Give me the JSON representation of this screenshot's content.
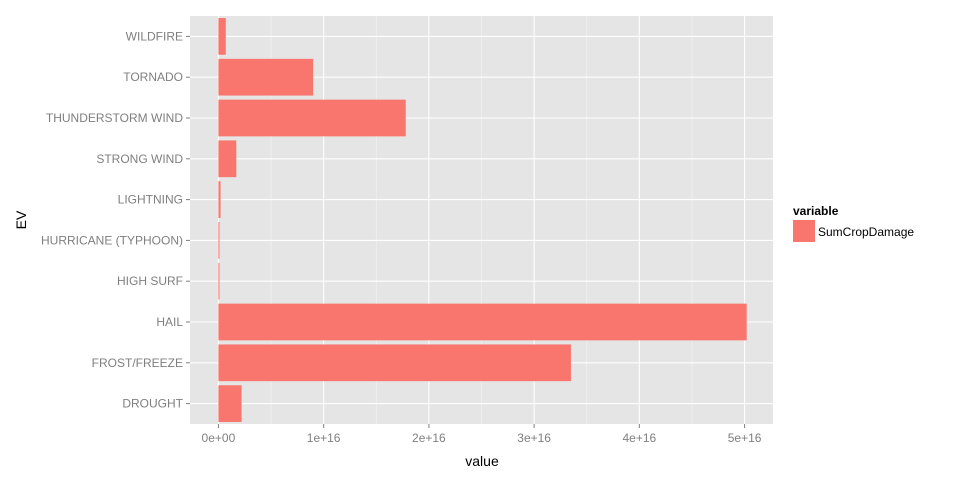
{
  "chart_data": {
    "type": "bar",
    "orientation": "horizontal",
    "categories": [
      "DROUGHT",
      "FROST/FREEZE",
      "HAIL",
      "HIGH SURF",
      "HURRICANE (TYPHOON)",
      "LIGHTNING",
      "STRONG WIND",
      "THUNDERSTORM WIND",
      "TORNADO",
      "WILDFIRE"
    ],
    "series": [
      {
        "name": "SumCropDamage",
        "color": "#F8766D",
        "values": [
          2200000000000000.0,
          3.35e+16,
          5.02e+16,
          100000000000000.0,
          100000000000000.0,
          200000000000000.0,
          1700000000000000.0,
          1.78e+16,
          9000000000000000.0,
          700000000000000.0
        ]
      }
    ],
    "xlabel": "value",
    "ylabel": "EV",
    "xlim": [
      -2700000000000000.0,
      5.27e+16
    ],
    "xticks": [
      0,
      1e+16,
      2e+16,
      3e+16,
      4e+16,
      5e+16
    ],
    "xtick_labels": [
      "0e+00",
      "1e+16",
      "2e+16",
      "3e+16",
      "4e+16",
      "5e+16"
    ],
    "grid": true,
    "panel_background": "#E5E5E5",
    "legend": {
      "title": "variable",
      "placement": "right",
      "entries": [
        "SumCropDamage"
      ]
    }
  }
}
